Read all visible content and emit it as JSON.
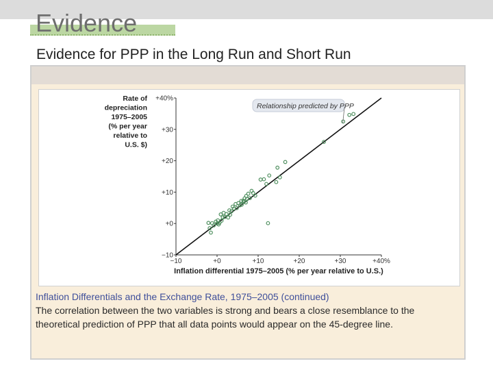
{
  "slide": {
    "title": "Evidence",
    "subtitle": "Evidence for PPP in the Long Run and Short Run",
    "caption_title": "Inflation Differentials and the Exchange Rate, 1975–2005 (continued)",
    "caption_body": "The correlation between the two variables is strong and bears a close resemblance to the theoretical prediction of PPP that all data points would appear on the 45-degree line."
  },
  "chart_data": {
    "type": "scatter",
    "ylabel_lines": [
      "Rate of",
      "depreciation",
      "1975–2005",
      "(% per year",
      "relative to",
      "U.S. $)"
    ],
    "xlabel": "Inflation differential 1975–2005 (% per year relative to U.S.)",
    "xlim": [
      -10,
      40
    ],
    "ylim": [
      -10,
      40
    ],
    "x_ticks": [
      "−10",
      "+0",
      "+10",
      "+20",
      "+30",
      "+40%"
    ],
    "y_ticks": [
      "+40%",
      "+30",
      "+20",
      "+10",
      "+0",
      "−10"
    ],
    "grid": false,
    "annotation": "Relationship predicted by PPP",
    "line": {
      "x": [
        -10,
        40
      ],
      "y": [
        -10,
        40
      ]
    },
    "points": [
      {
        "x": -2.1,
        "y": 0.2
      },
      {
        "x": -1.8,
        "y": -1.5
      },
      {
        "x": -1.5,
        "y": -2.9
      },
      {
        "x": -1.2,
        "y": 0.1
      },
      {
        "x": -0.8,
        "y": -0.6
      },
      {
        "x": -0.3,
        "y": 0.6
      },
      {
        "x": 0.0,
        "y": 0.0
      },
      {
        "x": 0.2,
        "y": 1.0
      },
      {
        "x": 0.4,
        "y": -0.3
      },
      {
        "x": 0.6,
        "y": 0.2
      },
      {
        "x": 0.9,
        "y": 2.9
      },
      {
        "x": 1.1,
        "y": 0.9
      },
      {
        "x": 1.4,
        "y": 2.0
      },
      {
        "x": 1.6,
        "y": 3.4
      },
      {
        "x": 1.9,
        "y": 2.1
      },
      {
        "x": 2.3,
        "y": 3.0
      },
      {
        "x": 2.7,
        "y": 1.9
      },
      {
        "x": 3.0,
        "y": 4.2
      },
      {
        "x": 3.2,
        "y": 2.8
      },
      {
        "x": 3.5,
        "y": 3.9
      },
      {
        "x": 3.8,
        "y": 5.4
      },
      {
        "x": 4.1,
        "y": 4.8
      },
      {
        "x": 4.5,
        "y": 6.2
      },
      {
        "x": 4.8,
        "y": 4.9
      },
      {
        "x": 5.2,
        "y": 6.5
      },
      {
        "x": 5.6,
        "y": 5.8
      },
      {
        "x": 6.0,
        "y": 6.0
      },
      {
        "x": 6.4,
        "y": 7.3
      },
      {
        "x": 6.7,
        "y": 8.0
      },
      {
        "x": 7.0,
        "y": 6.7
      },
      {
        "x": 7.3,
        "y": 7.8
      },
      {
        "x": 7.6,
        "y": 9.5
      },
      {
        "x": 8.0,
        "y": 8.1
      },
      {
        "x": 8.4,
        "y": 10.4
      },
      {
        "x": 8.8,
        "y": 9.7
      },
      {
        "x": 9.3,
        "y": 8.9
      },
      {
        "x": 6.5,
        "y": 6.9
      },
      {
        "x": 7.1,
        "y": 8.8
      },
      {
        "x": 5.9,
        "y": 7.2
      },
      {
        "x": 10.6,
        "y": 14.0
      },
      {
        "x": 11.4,
        "y": 14.1
      },
      {
        "x": 12.0,
        "y": 12.6
      },
      {
        "x": 12.7,
        "y": 15.3
      },
      {
        "x": 14.4,
        "y": 13.2
      },
      {
        "x": 14.7,
        "y": 17.8
      },
      {
        "x": 15.3,
        "y": 14.7
      },
      {
        "x": 16.6,
        "y": 19.6
      },
      {
        "x": 12.4,
        "y": 0.1
      },
      {
        "x": 26.0,
        "y": 26.0
      },
      {
        "x": 30.7,
        "y": 32.5
      },
      {
        "x": 32.2,
        "y": 34.6
      },
      {
        "x": 33.2,
        "y": 34.9
      }
    ]
  }
}
